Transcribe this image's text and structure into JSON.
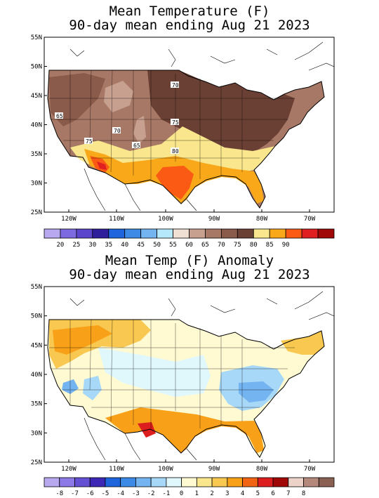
{
  "panel1": {
    "title_line1": "Mean Temperature (F)",
    "title_line2": "90-day mean ending Aug 21 2023",
    "contour_labels": [
      "70",
      "65",
      "70",
      "75",
      "75",
      "65",
      "80"
    ],
    "legend": {
      "colors": [
        "#b8a8f0",
        "#7c6be0",
        "#5a45cc",
        "#2e1e9c",
        "#1e64dc",
        "#3c8ae6",
        "#74b4f0",
        "#b4e8fa",
        "#f0e0d4",
        "#c8a090",
        "#a87866",
        "#8a5a4a",
        "#6a4034",
        "#fae68c",
        "#f8a818",
        "#fa5a14",
        "#e02020",
        "#a00808"
      ],
      "labels": [
        "20",
        "25",
        "30",
        "35",
        "40",
        "45",
        "50",
        "55",
        "60",
        "65",
        "70",
        "75",
        "80",
        "85",
        "90"
      ]
    }
  },
  "panel2": {
    "title_line1": "Mean Temp (F) Anomaly",
    "title_line2": "90-day mean ending Aug 21 2023",
    "legend": {
      "colors": [
        "#b8a8f0",
        "#8c78e6",
        "#6450d2",
        "#3c28b4",
        "#1e64dc",
        "#3c8ae6",
        "#74b4f0",
        "#a8d8f8",
        "#e0f8fc",
        "#fffad2",
        "#fae68c",
        "#f8c850",
        "#f8a018",
        "#f06414",
        "#dc1e1e",
        "#a00808",
        "#ecd2c8",
        "#b4887a",
        "#8a6052"
      ],
      "labels": [
        "-8",
        "-7",
        "-6",
        "-5",
        "-4",
        "-3",
        "-2",
        "-1",
        "0",
        "1",
        "2",
        "3",
        "4",
        "5",
        "6",
        "7",
        "8"
      ]
    }
  },
  "axes": {
    "lat_labels": [
      "55N",
      "50N",
      "45N",
      "40N",
      "35N",
      "30N",
      "25N"
    ],
    "lon_labels": [
      "120W",
      "110W",
      "100W",
      "90W",
      "80W",
      "70W"
    ]
  }
}
